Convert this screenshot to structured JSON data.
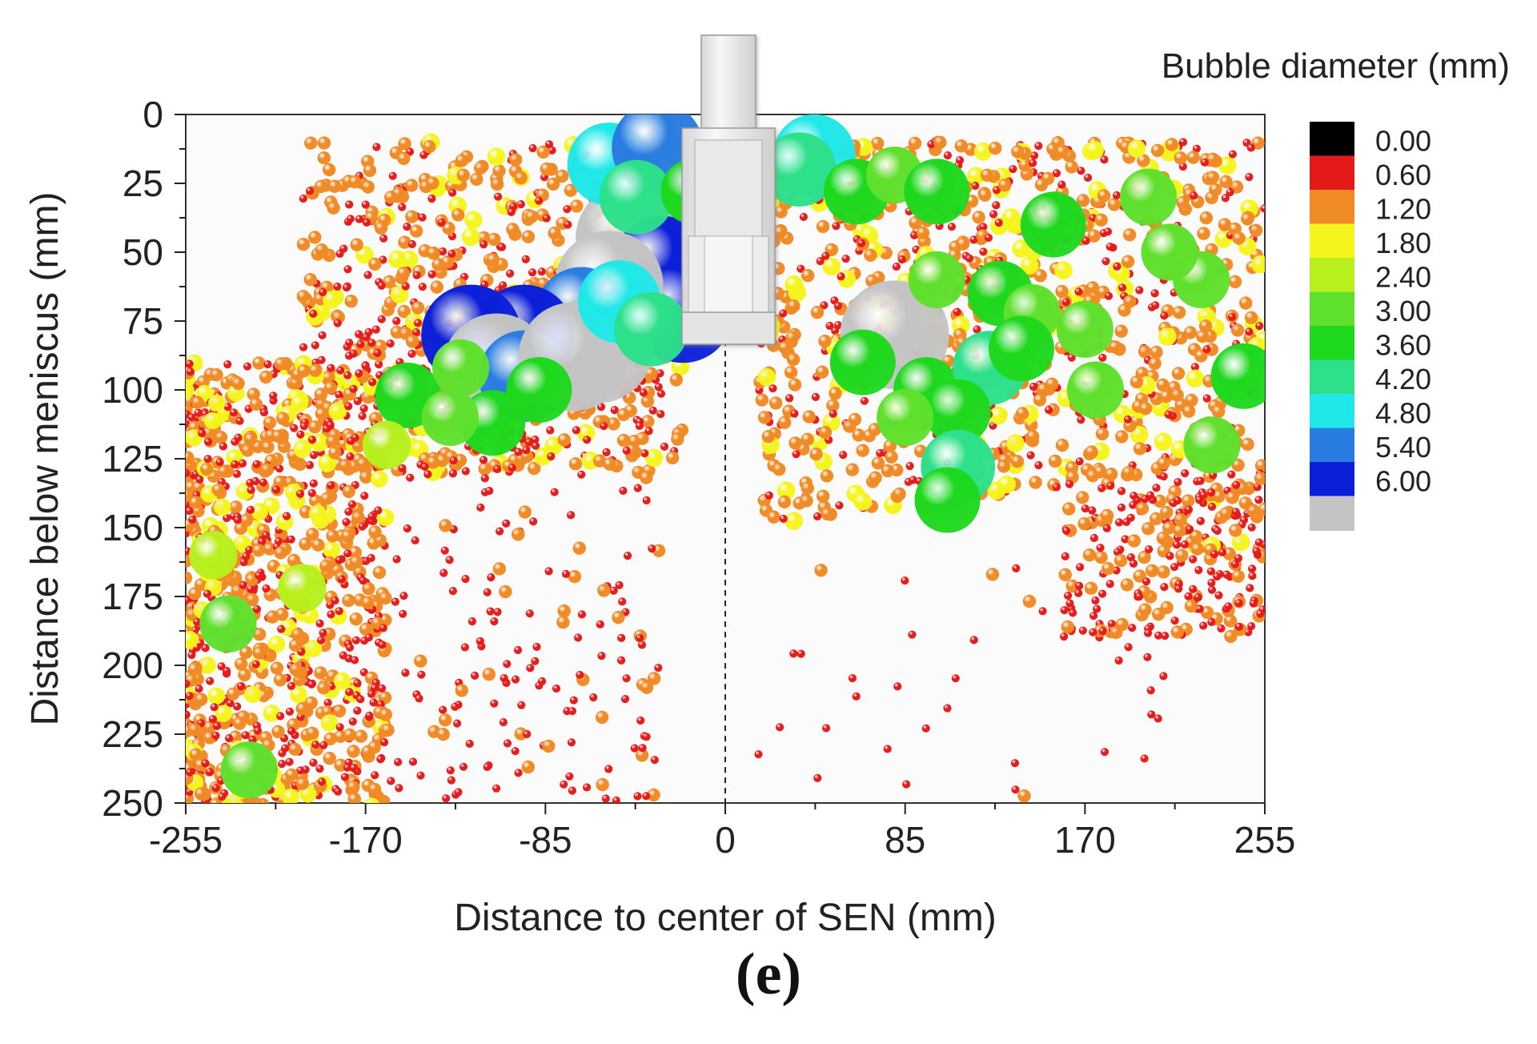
{
  "chart_data": {
    "type": "scatter",
    "title": "",
    "xlabel": "Distance to center of SEN (mm)",
    "ylabel": "Distance below meniscus (mm)",
    "xlim": [
      -255,
      255
    ],
    "ylim": [
      0,
      250
    ],
    "y_inverted": true,
    "x_ticks": [
      -255,
      -170,
      -85,
      0,
      85,
      170,
      255
    ],
    "y_ticks": [
      0,
      25,
      50,
      75,
      100,
      125,
      150,
      175,
      200,
      225,
      250
    ],
    "centerline_x": 0,
    "colorbar": {
      "title": "Bubble diameter (mm)",
      "levels": [
        "0.00",
        "0.60",
        "1.20",
        "1.80",
        "2.40",
        "3.00",
        "3.60",
        "4.20",
        "4.80",
        "5.40",
        "6.00"
      ],
      "colors": [
        "#000000",
        "#e41a1a",
        "#f08a24",
        "#f5f51e",
        "#b8f01e",
        "#5fe02c",
        "#1ed81e",
        "#2de08a",
        "#20e8e8",
        "#2a7de0",
        "#0b1fd8",
        "#c4c4c4"
      ]
    },
    "nozzle": {
      "label": "SEN",
      "x_range": [
        -20,
        20
      ],
      "depth_mm": 82
    },
    "large_bubbles": [
      {
        "x": -45,
        "y": 45,
        "d": 6.0
      },
      {
        "x": -30,
        "y": 55,
        "d": 5.4
      },
      {
        "x": -20,
        "y": 72,
        "d": 5.4
      },
      {
        "x": -55,
        "y": 62,
        "d": 6.0
      },
      {
        "x": -68,
        "y": 72,
        "d": 4.8
      },
      {
        "x": -60,
        "y": 85,
        "d": 6.0
      },
      {
        "x": -78,
        "y": 82,
        "d": 3.6
      },
      {
        "x": -95,
        "y": 80,
        "d": 5.4
      },
      {
        "x": -120,
        "y": 80,
        "d": 5.4
      },
      {
        "x": -108,
        "y": 92,
        "d": 6.0
      },
      {
        "x": -95,
        "y": 95,
        "d": 4.8
      },
      {
        "x": -72,
        "y": 88,
        "d": 6.0
      },
      {
        "x": -88,
        "y": 100,
        "d": 3.0
      },
      {
        "x": -110,
        "y": 112,
        "d": 3.0
      },
      {
        "x": -150,
        "y": 102,
        "d": 3.0
      },
      {
        "x": -130,
        "y": 110,
        "d": 2.4
      },
      {
        "x": -55,
        "y": 18,
        "d": 4.2
      },
      {
        "x": -32,
        "y": 12,
        "d": 4.8
      },
      {
        "x": -42,
        "y": 30,
        "d": 3.6
      },
      {
        "x": -15,
        "y": 28,
        "d": 3.0
      },
      {
        "x": -50,
        "y": 68,
        "d": 4.2
      },
      {
        "x": -35,
        "y": 78,
        "d": 3.6
      },
      {
        "x": -125,
        "y": 92,
        "d": 2.4
      },
      {
        "x": 42,
        "y": 15,
        "d": 4.2
      },
      {
        "x": 35,
        "y": 20,
        "d": 3.6
      },
      {
        "x": 62,
        "y": 28,
        "d": 3.0
      },
      {
        "x": 80,
        "y": 22,
        "d": 2.4
      },
      {
        "x": 100,
        "y": 28,
        "d": 3.0
      },
      {
        "x": 80,
        "y": 80,
        "d": 6.0
      },
      {
        "x": 65,
        "y": 90,
        "d": 3.0
      },
      {
        "x": 95,
        "y": 100,
        "d": 3.0
      },
      {
        "x": 125,
        "y": 92,
        "d": 3.6
      },
      {
        "x": 110,
        "y": 108,
        "d": 3.0
      },
      {
        "x": 110,
        "y": 128,
        "d": 3.6
      },
      {
        "x": 105,
        "y": 140,
        "d": 3.0
      },
      {
        "x": 85,
        "y": 110,
        "d": 2.4
      },
      {
        "x": 100,
        "y": 60,
        "d": 2.4
      },
      {
        "x": 130,
        "y": 65,
        "d": 3.0
      },
      {
        "x": 145,
        "y": 72,
        "d": 2.4
      },
      {
        "x": 170,
        "y": 78,
        "d": 2.4
      },
      {
        "x": 155,
        "y": 40,
        "d": 3.0
      },
      {
        "x": 200,
        "y": 30,
        "d": 2.4
      },
      {
        "x": 225,
        "y": 60,
        "d": 2.4
      },
      {
        "x": 245,
        "y": 95,
        "d": 3.0
      },
      {
        "x": 230,
        "y": 120,
        "d": 2.4
      },
      {
        "x": 140,
        "y": 85,
        "d": 3.0
      },
      {
        "x": 175,
        "y": 100,
        "d": 2.4
      },
      {
        "x": 210,
        "y": 50,
        "d": 2.4
      },
      {
        "x": -160,
        "y": 120,
        "d": 1.8
      },
      {
        "x": -235,
        "y": 185,
        "d": 2.4
      },
      {
        "x": -225,
        "y": 238,
        "d": 2.4
      },
      {
        "x": -200,
        "y": 172,
        "d": 1.8
      },
      {
        "x": -242,
        "y": 160,
        "d": 1.8
      }
    ]
  },
  "caption": "(e)"
}
